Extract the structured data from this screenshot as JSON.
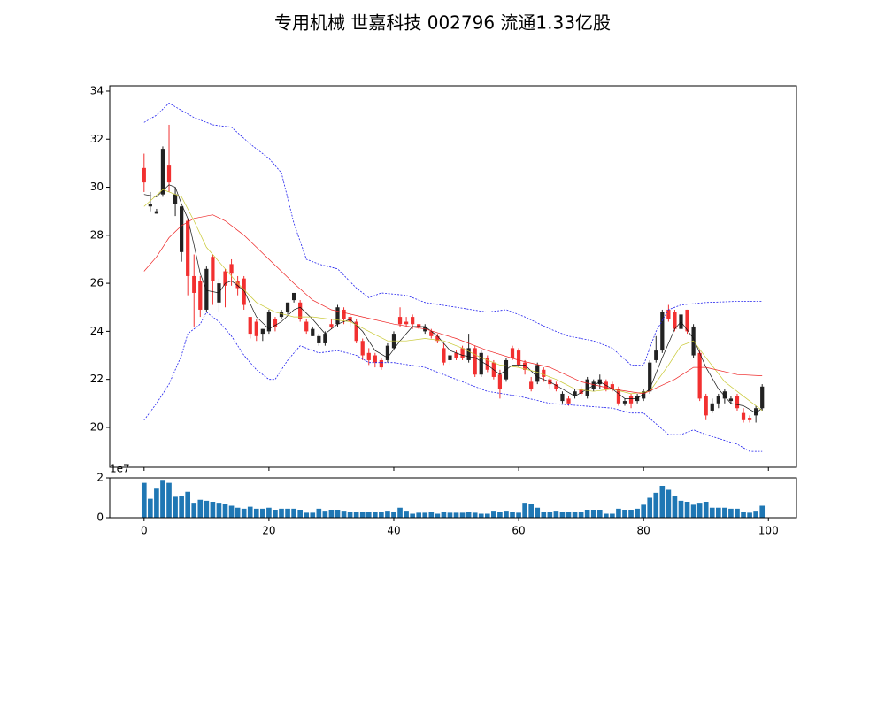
{
  "chart_data": [
    {
      "type": "candlestick",
      "title": "专用机械 世嘉科技 002796 流通1.33亿股",
      "up_color": "#222222",
      "down_color": "#f23030",
      "xlim": [
        -5.5,
        104.5
      ],
      "xticks": [
        0,
        20,
        40,
        60,
        80,
        100
      ],
      "ylim": [
        18.34,
        34.22
      ],
      "yticks": [
        20,
        22,
        24,
        26,
        28,
        30,
        32,
        34
      ],
      "x": [
        0,
        1,
        2,
        3,
        4,
        5,
        6,
        7,
        8,
        9,
        10,
        11,
        12,
        13,
        14,
        15,
        16,
        17,
        18,
        19,
        20,
        21,
        22,
        23,
        24,
        25,
        26,
        27,
        28,
        29,
        30,
        31,
        32,
        33,
        34,
        35,
        36,
        37,
        38,
        39,
        40,
        41,
        42,
        43,
        44,
        45,
        46,
        47,
        48,
        49,
        50,
        51,
        52,
        53,
        54,
        55,
        56,
        57,
        58,
        59,
        60,
        61,
        62,
        63,
        64,
        65,
        66,
        67,
        68,
        69,
        70,
        71,
        72,
        73,
        74,
        75,
        76,
        77,
        78,
        79,
        80,
        81,
        82,
        83,
        84,
        85,
        86,
        87,
        88,
        89,
        90,
        91,
        92,
        93,
        94,
        95,
        96,
        97,
        98,
        99
      ],
      "open": [
        30.8,
        29.2,
        28.9,
        29.7,
        30.9,
        29.3,
        27.3,
        28.6,
        26.3,
        26.1,
        24.9,
        27.1,
        25.2,
        26.5,
        26.8,
        26.1,
        26.2,
        24.6,
        24.4,
        23.9,
        24.0,
        24.5,
        24.6,
        24.8,
        25.3,
        25.2,
        24.4,
        23.8,
        23.5,
        23.5,
        24.3,
        24.3,
        24.9,
        24.6,
        24.4,
        23.6,
        23.1,
        23.0,
        22.8,
        22.8,
        23.3,
        24.6,
        24.4,
        24.6,
        24.3,
        24.0,
        24.0,
        23.8,
        23.3,
        22.8,
        23.1,
        23.3,
        22.8,
        23.3,
        22.2,
        22.9,
        22.7,
        22.2,
        22.0,
        23.3,
        23.2,
        22.7,
        21.9,
        21.9,
        22.4,
        22.0,
        21.8,
        21.1,
        21.2,
        21.3,
        21.6,
        21.3,
        21.6,
        21.8,
        21.9,
        21.8,
        21.6,
        21.0,
        21.3,
        21.1,
        21.2,
        21.5,
        22.8,
        23.2,
        24.9,
        24.8,
        24.1,
        24.9,
        23.0,
        23.1,
        21.3,
        20.7,
        21.0,
        21.2,
        21.1,
        21.3,
        20.6,
        20.4,
        20.5,
        20.8
      ],
      "high": [
        31.4,
        29.8,
        29.1,
        31.7,
        32.6,
        30.0,
        29.2,
        28.7,
        27.2,
        26.3,
        26.7,
        27.2,
        26.2,
        26.6,
        27.0,
        26.3,
        26.3,
        24.6,
        24.5,
        24.1,
        24.9,
        24.6,
        24.9,
        25.2,
        25.6,
        25.3,
        24.5,
        24.2,
        23.9,
        24.0,
        24.5,
        25.1,
        25.0,
        24.7,
        24.5,
        23.7,
        23.3,
        23.1,
        22.9,
        23.5,
        24.0,
        25.0,
        24.6,
        24.7,
        24.3,
        24.3,
        24.1,
        23.9,
        23.5,
        23.1,
        23.2,
        23.4,
        23.9,
        23.4,
        23.2,
        23.0,
        22.8,
        22.4,
        22.9,
        23.4,
        23.3,
        22.8,
        22.1,
        22.7,
        22.5,
        22.1,
        21.9,
        21.5,
        21.3,
        21.6,
        21.7,
        22.1,
        22.0,
        22.2,
        22.0,
        21.9,
        21.7,
        21.2,
        21.4,
        21.4,
        21.6,
        22.8,
        23.8,
        24.9,
        25.1,
        24.9,
        24.8,
        24.9,
        24.3,
        23.2,
        21.4,
        21.2,
        21.4,
        21.6,
        21.3,
        21.4,
        20.8,
        20.5,
        20.9,
        21.8
      ],
      "low": [
        29.8,
        29.0,
        28.9,
        29.6,
        29.8,
        28.8,
        26.9,
        25.5,
        24.2,
        24.6,
        24.8,
        25.1,
        24.8,
        25.0,
        25.9,
        25.5,
        24.9,
        23.7,
        23.6,
        23.6,
        23.9,
        24.0,
        24.5,
        24.7,
        25.2,
        24.4,
        23.9,
        23.8,
        23.4,
        23.4,
        24.1,
        24.2,
        24.3,
        24.2,
        23.5,
        22.8,
        22.6,
        22.5,
        22.4,
        22.7,
        23.2,
        24.2,
        24.2,
        24.1,
        24.1,
        23.9,
        23.7,
        23.5,
        22.6,
        22.6,
        22.8,
        22.8,
        22.7,
        22.1,
        22.1,
        22.3,
        22.0,
        21.2,
        21.9,
        22.8,
        22.5,
        22.2,
        21.5,
        21.8,
        21.9,
        21.6,
        21.5,
        21.0,
        20.9,
        21.2,
        21.3,
        21.2,
        21.5,
        21.6,
        21.5,
        21.5,
        20.9,
        20.9,
        20.8,
        21.0,
        21.1,
        21.4,
        22.7,
        23.1,
        24.4,
        24.0,
        24.0,
        23.9,
        22.9,
        21.1,
        20.3,
        20.6,
        20.8,
        21.0,
        21.0,
        20.7,
        20.2,
        20.2,
        20.2,
        20.7
      ],
      "close": [
        30.2,
        29.3,
        29.0,
        31.6,
        30.2,
        29.7,
        29.2,
        26.3,
        25.6,
        24.9,
        26.6,
        26.1,
        26.0,
        25.9,
        26.4,
        25.8,
        25.1,
        23.9,
        23.8,
        24.1,
        24.8,
        24.2,
        24.8,
        25.2,
        25.6,
        24.5,
        24.0,
        24.1,
        23.8,
        23.9,
        24.2,
        25.0,
        24.5,
        24.4,
        23.6,
        23.0,
        22.8,
        22.7,
        22.5,
        23.4,
        23.9,
        24.3,
        24.3,
        24.3,
        24.2,
        24.2,
        23.8,
        23.6,
        22.7,
        23.0,
        22.9,
        22.9,
        23.3,
        22.2,
        23.1,
        22.4,
        22.1,
        21.6,
        22.8,
        22.9,
        22.6,
        22.4,
        21.6,
        22.6,
        22.1,
        21.8,
        21.6,
        21.4,
        21.0,
        21.5,
        21.4,
        22.0,
        21.9,
        22.0,
        21.6,
        21.6,
        21.0,
        21.1,
        21.0,
        21.3,
        21.5,
        22.7,
        23.2,
        24.8,
        24.5,
        24.1,
        24.7,
        24.0,
        24.2,
        21.2,
        20.5,
        21.0,
        21.3,
        21.5,
        21.2,
        20.8,
        20.3,
        20.3,
        20.8,
        21.7
      ],
      "lines": [
        {
          "color": "#111111",
          "style": "solid",
          "x": [
            0,
            2,
            4,
            5,
            6,
            7,
            8,
            9,
            10,
            12,
            13,
            14,
            15,
            16,
            18,
            20,
            22,
            24,
            25,
            27,
            29,
            31,
            33,
            35,
            37,
            39,
            41,
            43,
            45,
            47,
            49,
            51,
            53,
            55,
            57,
            59,
            61,
            63,
            65,
            67,
            69,
            71,
            73,
            75,
            77,
            79,
            81,
            83,
            85,
            86,
            88,
            90,
            92,
            94,
            96,
            98,
            99
          ],
          "values": [
            29.7,
            29.6,
            30.1,
            30.0,
            29.3,
            28.7,
            27.6,
            26.4,
            25.7,
            25.6,
            26.0,
            26.1,
            25.9,
            25.7,
            24.6,
            24.1,
            24.4,
            24.9,
            25.0,
            24.5,
            23.9,
            24.3,
            24.5,
            24.0,
            23.2,
            22.9,
            23.6,
            24.2,
            24.2,
            23.8,
            23.2,
            23.0,
            22.9,
            22.6,
            22.2,
            22.6,
            22.6,
            22.1,
            21.9,
            21.6,
            21.3,
            21.6,
            21.9,
            21.6,
            21.2,
            21.2,
            21.6,
            22.9,
            24.1,
            24.4,
            23.7,
            22.5,
            21.6,
            21.0,
            20.9,
            20.6,
            20.8
          ]
        },
        {
          "color": "#c8c832",
          "style": "solid",
          "x": [
            0,
            3,
            6,
            8,
            10,
            13,
            15,
            18,
            21,
            24,
            27,
            30,
            33,
            36,
            39,
            42,
            45,
            48,
            51,
            54,
            57,
            60,
            63,
            66,
            69,
            72,
            75,
            78,
            81,
            84,
            86,
            88,
            90,
            93,
            96,
            99
          ],
          "values": [
            29.2,
            29.9,
            29.6,
            28.6,
            27.5,
            26.6,
            26.0,
            25.2,
            24.8,
            24.6,
            24.6,
            24.5,
            24.4,
            24.0,
            23.6,
            23.6,
            23.7,
            23.6,
            23.3,
            22.9,
            22.6,
            22.5,
            22.3,
            22.0,
            21.6,
            21.5,
            21.6,
            21.4,
            21.5,
            22.6,
            23.4,
            23.6,
            22.9,
            21.9,
            21.3,
            20.7
          ]
        },
        {
          "color": "#ee2222",
          "style": "solid",
          "x": [
            0,
            2,
            4,
            6,
            8,
            11,
            13,
            16,
            20,
            24,
            27,
            30,
            35,
            40,
            45,
            50,
            55,
            60,
            65,
            70,
            75,
            80,
            85,
            88,
            90,
            95,
            99
          ],
          "values": [
            26.5,
            27.1,
            27.9,
            28.4,
            28.7,
            28.85,
            28.6,
            28.0,
            27.0,
            26.0,
            25.3,
            24.9,
            24.6,
            24.3,
            24.1,
            23.7,
            23.2,
            22.8,
            22.5,
            21.9,
            21.6,
            21.4,
            22.0,
            22.5,
            22.5,
            22.2,
            22.15
          ]
        },
        {
          "color": "#2222ee",
          "style": "dashed",
          "x": [
            0,
            2,
            4,
            6,
            8,
            11,
            14,
            17,
            20,
            22,
            24,
            26,
            28,
            31,
            34,
            36,
            38,
            42,
            45,
            50,
            55,
            58,
            61,
            65,
            68,
            72,
            75,
            78,
            80,
            82,
            84,
            86,
            90,
            95,
            99
          ],
          "values": [
            32.7,
            33.0,
            33.5,
            33.2,
            32.9,
            32.6,
            32.5,
            31.8,
            31.2,
            30.6,
            28.5,
            27.0,
            26.8,
            26.6,
            25.8,
            25.4,
            25.6,
            25.5,
            25.2,
            25.0,
            24.8,
            24.9,
            24.6,
            24.1,
            23.8,
            23.6,
            23.3,
            22.6,
            22.6,
            24.0,
            24.9,
            25.1,
            25.2,
            25.25,
            25.25
          ]
        },
        {
          "color": "#2222ee",
          "style": "dashed",
          "x": [
            0,
            2,
            4,
            6,
            7,
            9,
            10,
            12,
            14,
            16,
            18,
            20,
            21,
            23,
            25,
            28,
            31,
            34,
            36,
            40,
            45,
            50,
            55,
            60,
            65,
            70,
            75,
            78,
            80,
            84,
            86,
            88,
            90,
            95,
            97,
            99
          ],
          "values": [
            20.3,
            21.0,
            21.8,
            23.0,
            23.9,
            24.3,
            24.8,
            24.4,
            23.8,
            23.0,
            22.4,
            22.0,
            22.0,
            22.8,
            23.4,
            23.1,
            23.2,
            23.0,
            22.7,
            22.7,
            22.5,
            22.0,
            21.5,
            21.3,
            21.0,
            20.9,
            20.8,
            20.6,
            20.6,
            19.7,
            19.7,
            19.9,
            19.7,
            19.3,
            19.0,
            19.0
          ]
        }
      ]
    },
    {
      "type": "bar",
      "color": "#1f77b4",
      "offset_label": "1e7",
      "xlim": [
        -5.5,
        104.5
      ],
      "xticks": [
        0,
        20,
        40,
        60,
        80,
        100
      ],
      "ylim": [
        0,
        20000000
      ],
      "yticks": [
        0,
        {
          "value": 20000000,
          "label": "2"
        }
      ],
      "values": [
        17500000,
        9500000,
        15000000,
        19000000,
        17500000,
        10500000,
        11000000,
        13000000,
        7500000,
        9000000,
        8500000,
        8000000,
        7500000,
        7000000,
        6000000,
        5000000,
        4500000,
        5500000,
        4500000,
        4500000,
        5000000,
        4000000,
        4500000,
        4500000,
        4500000,
        4000000,
        2500000,
        2500000,
        4500000,
        3500000,
        4000000,
        4000000,
        3500000,
        3000000,
        3000000,
        3000000,
        3000000,
        3000000,
        3000000,
        3500000,
        3000000,
        5000000,
        3500000,
        2000000,
        2500000,
        2500000,
        3000000,
        2000000,
        3000000,
        2500000,
        2500000,
        2500000,
        3000000,
        2500000,
        2000000,
        2000000,
        3500000,
        3000000,
        3500000,
        3000000,
        2500000,
        7500000,
        7000000,
        5000000,
        3000000,
        3000000,
        3500000,
        3000000,
        3000000,
        3000000,
        3000000,
        4000000,
        4000000,
        4000000,
        2000000,
        2000000,
        4500000,
        4000000,
        4000000,
        4500000,
        6500000,
        10000000,
        12500000,
        16000000,
        14000000,
        11000000,
        8500000,
        8000000,
        6500000,
        7500000,
        8000000,
        5000000,
        5000000,
        5000000,
        4500000,
        4500000,
        3000000,
        2500000,
        3500000,
        6000000
      ]
    }
  ]
}
